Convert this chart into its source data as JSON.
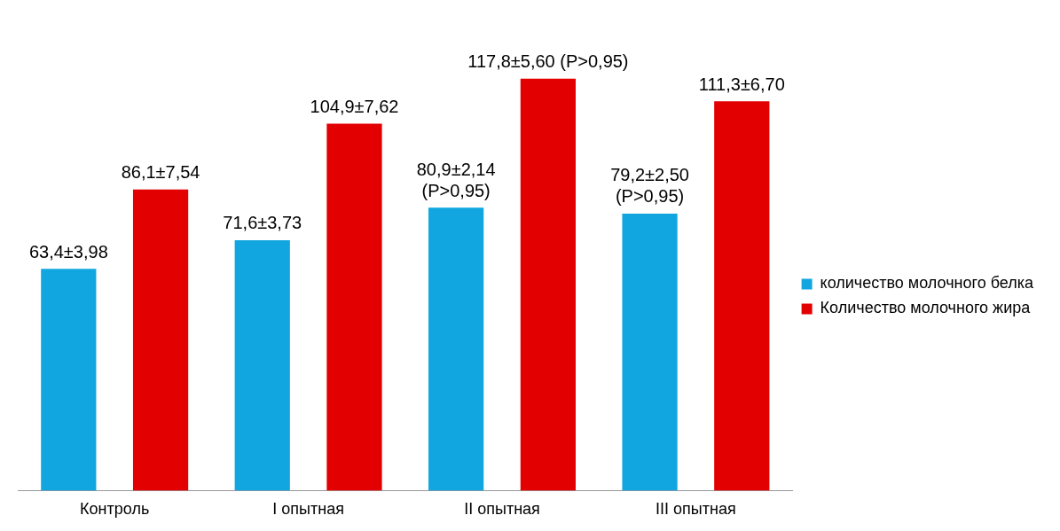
{
  "chart_data": {
    "type": "bar",
    "categories": [
      "Контроль",
      "I опытная",
      "II опытная",
      "III опытная"
    ],
    "series": [
      {
        "name": "количество молочного белка",
        "color": "#12a6e0",
        "values": [
          63.4,
          71.6,
          80.9,
          79.2
        ],
        "value_labels": [
          "63,4±3,98",
          "71,6±3,73",
          "80,9±2,14\n(P>0,95)",
          "79,2±2,50\n(P>0,95)"
        ]
      },
      {
        "name": "Количество молочного жира",
        "color": "#e30000",
        "values": [
          86.1,
          104.9,
          117.8,
          111.3
        ],
        "value_labels": [
          "86,1±7,54",
          "104,9±7,62",
          "117,8±5,60 (P>0,95)",
          "111,3±6,70"
        ]
      }
    ],
    "legend": "right",
    "grid": false,
    "tick_labels": "x"
  }
}
